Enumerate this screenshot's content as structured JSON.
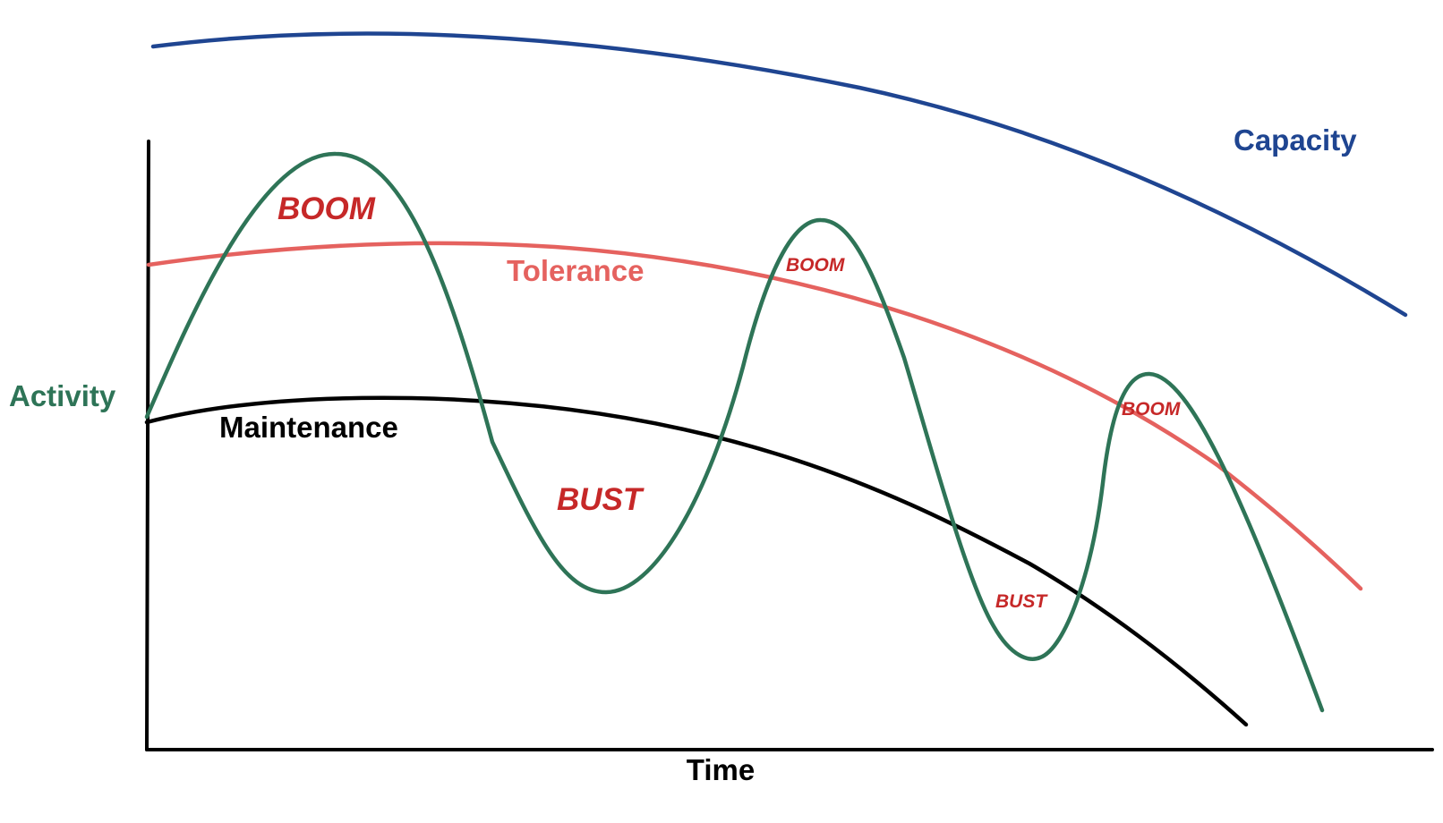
{
  "axes": {
    "x_label": "Time",
    "y_label": "Activity"
  },
  "curves": {
    "capacity": {
      "label": "Capacity",
      "color": "#1f4591"
    },
    "tolerance": {
      "label": "Tolerance",
      "color": "#e5625f"
    },
    "maintenance": {
      "label": "Maintenance",
      "color": "#000000"
    },
    "activity": {
      "label": "Activity",
      "color": "#2e7457"
    }
  },
  "annotations": {
    "boom_1": "BOOM",
    "bust_1": "BUST",
    "boom_2": "BOOM",
    "bust_2": "BUST",
    "boom_3": "BOOM",
    "color": "#c62828"
  }
}
